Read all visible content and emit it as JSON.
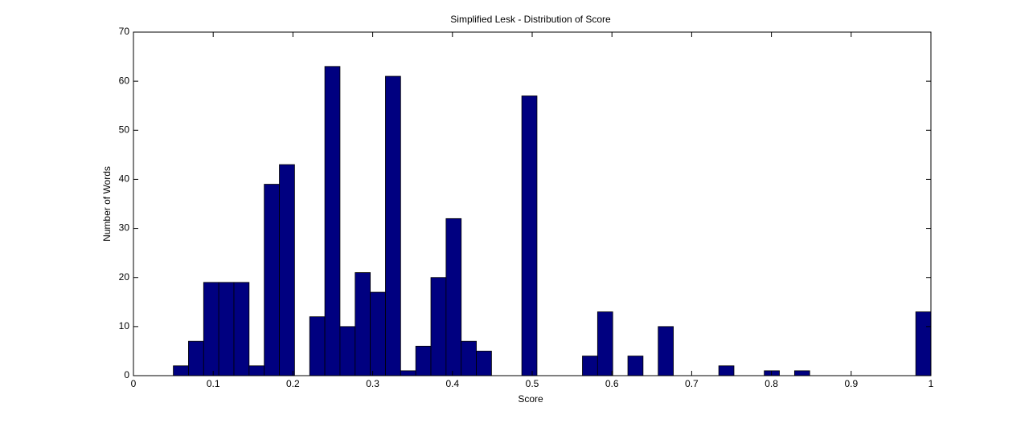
{
  "chart_data": {
    "type": "histogram",
    "title": "Simplified Lesk - Distribution of Score",
    "xlabel": "Score",
    "ylabel": "Number of Words",
    "bins": [
      0.05,
      0.069,
      0.088,
      0.107,
      0.126,
      0.145,
      0.164,
      0.183,
      0.202,
      0.221,
      0.24,
      0.259,
      0.278,
      0.297,
      0.316,
      0.335,
      0.354,
      0.373,
      0.392,
      0.411,
      0.43,
      0.449,
      0.468,
      0.487,
      0.506,
      0.525,
      0.544,
      0.563,
      0.582,
      0.601,
      0.62,
      0.639,
      0.658,
      0.677,
      0.696,
      0.715,
      0.734,
      0.753,
      0.772,
      0.791,
      0.81,
      0.829,
      0.848,
      0.867,
      0.886,
      0.905,
      0.924,
      0.943,
      0.962,
      0.981,
      1.0
    ],
    "values": [
      2,
      7,
      19,
      19,
      19,
      2,
      39,
      43,
      0,
      12,
      63,
      10,
      21,
      17,
      61,
      1,
      6,
      20,
      32,
      7,
      5,
      0,
      0,
      57,
      0,
      0,
      0,
      4,
      13,
      0,
      4,
      0,
      10,
      0,
      0,
      0,
      2,
      0,
      0,
      1,
      0,
      1,
      0,
      0,
      0,
      0,
      0,
      0,
      0,
      13
    ],
    "color": "#000080",
    "xlim": [
      0,
      1
    ],
    "xticks": [
      0,
      0.1,
      0.2,
      0.3,
      0.4,
      0.5,
      0.6,
      0.7,
      0.8,
      0.9,
      1
    ],
    "ylim": [
      0,
      70
    ],
    "yticks": [
      0,
      10,
      20,
      30,
      40,
      50,
      60,
      70
    ],
    "grid": false
  }
}
